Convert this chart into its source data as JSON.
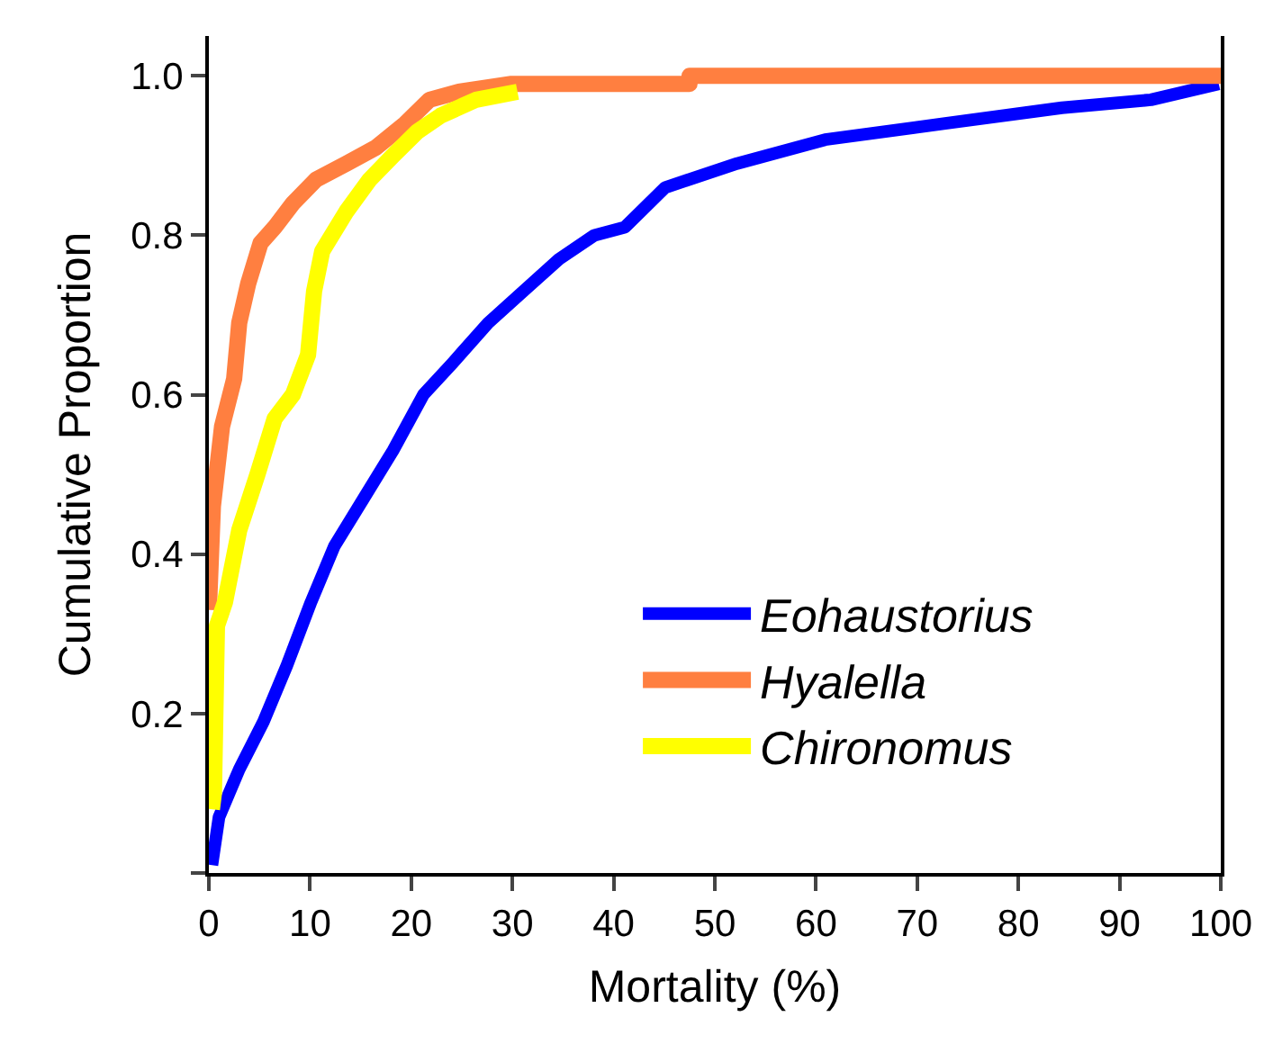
{
  "chart_data": {
    "type": "line",
    "xlabel": "Mortality (%)",
    "ylabel": "Cumulative Proportion",
    "xlim": [
      0,
      100
    ],
    "xticks": [
      0,
      10,
      20,
      30,
      40,
      50,
      60,
      70,
      80,
      90,
      100
    ],
    "ylim": [
      0,
      1.05
    ],
    "yticks": [
      {
        "value": 0,
        "label": null
      },
      {
        "value": 0.2,
        "label": "0.2"
      },
      {
        "value": 0.4,
        "label": "0.4"
      },
      {
        "value": 0.6,
        "label": "0.6"
      },
      {
        "value": 0.8,
        "label": "0.8"
      },
      {
        "value": 1.0,
        "label": "1.0"
      }
    ],
    "legend": "bottom right",
    "marker": "none",
    "line_style": "solid",
    "series": [
      {
        "name": "Eohaustorius",
        "color": "#0000ff",
        "x": [
          0.3,
          1.0,
          3.0,
          5.4,
          7.7,
          10.1,
          12.4,
          15.3,
          18.2,
          21.2,
          24.1,
          27.6,
          31.1,
          34.6,
          38.1,
          41.1,
          45.1,
          52.2,
          60.9,
          72.6,
          84.3,
          93.1,
          99.8
        ],
        "values": [
          0.01,
          0.07,
          0.13,
          0.19,
          0.26,
          0.34,
          0.41,
          0.47,
          0.53,
          0.6,
          0.64,
          0.69,
          0.73,
          0.77,
          0.8,
          0.81,
          0.86,
          0.89,
          0.92,
          0.94,
          0.96,
          0.97,
          0.99
        ]
      },
      {
        "name": "Hyalella",
        "color": "#ff7f40",
        "x": [
          0,
          0.4,
          1.3,
          2.5,
          3.0,
          3.9,
          5.1,
          6.5,
          8.3,
          10.6,
          13.6,
          16.5,
          19.4,
          21.8,
          24.7,
          29.9,
          47.5,
          47.5,
          100
        ],
        "values": [
          0.33,
          0.46,
          0.56,
          0.62,
          0.69,
          0.74,
          0.79,
          0.81,
          0.84,
          0.87,
          0.89,
          0.91,
          0.94,
          0.97,
          0.98,
          0.99,
          0.99,
          1.0,
          1.0
        ]
      },
      {
        "name": "Chironomus",
        "color": "#ffff00",
        "x": [
          0.3,
          0.5,
          0.8,
          1.6,
          3.0,
          4.8,
          6.5,
          8.3,
          9.8,
          10.4,
          11.2,
          13.6,
          15.9,
          18.2,
          20.6,
          22.9,
          26.4,
          30.5
        ],
        "values": [
          0.08,
          0.1,
          0.31,
          0.34,
          0.43,
          0.5,
          0.57,
          0.6,
          0.65,
          0.73,
          0.78,
          0.83,
          0.87,
          0.9,
          0.93,
          0.95,
          0.97,
          0.98
        ]
      }
    ]
  }
}
